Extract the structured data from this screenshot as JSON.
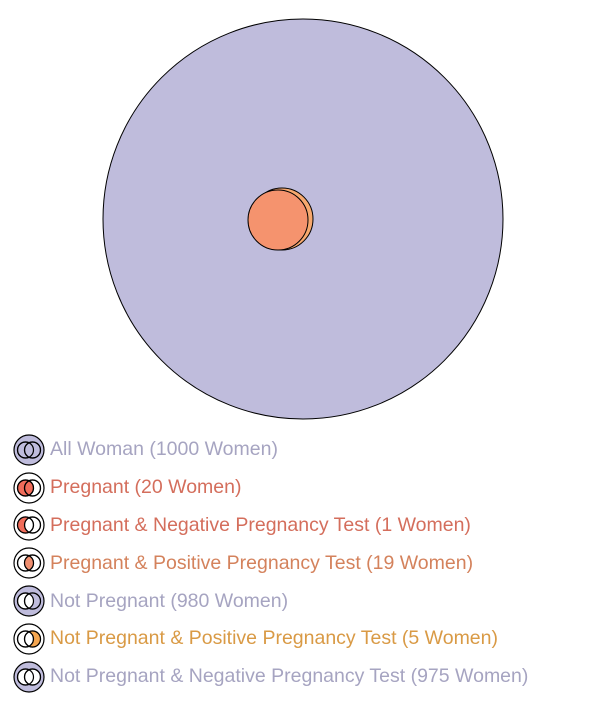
{
  "colors": {
    "all_women": "#bfbcdc",
    "pregnant": "#f08f70",
    "pregnant_positive": "#f6a86e",
    "not_pregnant_positive": "#f5a650",
    "outline": "#000000"
  },
  "diagram": {
    "sets": [
      {
        "name": "All Woman",
        "count": 1000
      },
      {
        "name": "Pregnant",
        "count": 20
      },
      {
        "name": "Pregnant & Negative Pregnancy Test",
        "count": 1
      },
      {
        "name": "Pregnant & Positive Pregnancy Test",
        "count": 19
      },
      {
        "name": "Not Pregnant",
        "count": 980
      },
      {
        "name": "Not Pregnant & Positive Pregnancy Test",
        "count": 5
      },
      {
        "name": "Not Pregnant & Negative Pregnancy Test",
        "count": 975
      }
    ]
  },
  "legend": {
    "items": [
      {
        "label": "All Woman (1000 Women)",
        "color": "#a6a4c1",
        "icon": "all-women-venn-icon"
      },
      {
        "label": "Pregnant (20 Women)",
        "color": "#d46e5c",
        "icon": "pregnant-venn-icon"
      },
      {
        "label": "Pregnant & Negative Pregnancy Test (1 Women)",
        "color": "#d46e5c",
        "icon": "pregnant-negative-venn-icon"
      },
      {
        "label": "Pregnant & Positive Pregnancy Test (19 Women)",
        "color": "#d4825c",
        "icon": "pregnant-positive-venn-icon"
      },
      {
        "label": "Not Pregnant (980 Women)",
        "color": "#a6a4c1",
        "icon": "not-pregnant-venn-icon"
      },
      {
        "label": "Not Pregnant & Positive Pregnancy Test (5 Women)",
        "color": "#d99a45",
        "icon": "not-pregnant-positive-venn-icon"
      },
      {
        "label": "Not Pregnant & Negative Pregnancy Test (975 Women)",
        "color": "#a6a4c1",
        "icon": "not-pregnant-negative-venn-icon"
      }
    ]
  }
}
